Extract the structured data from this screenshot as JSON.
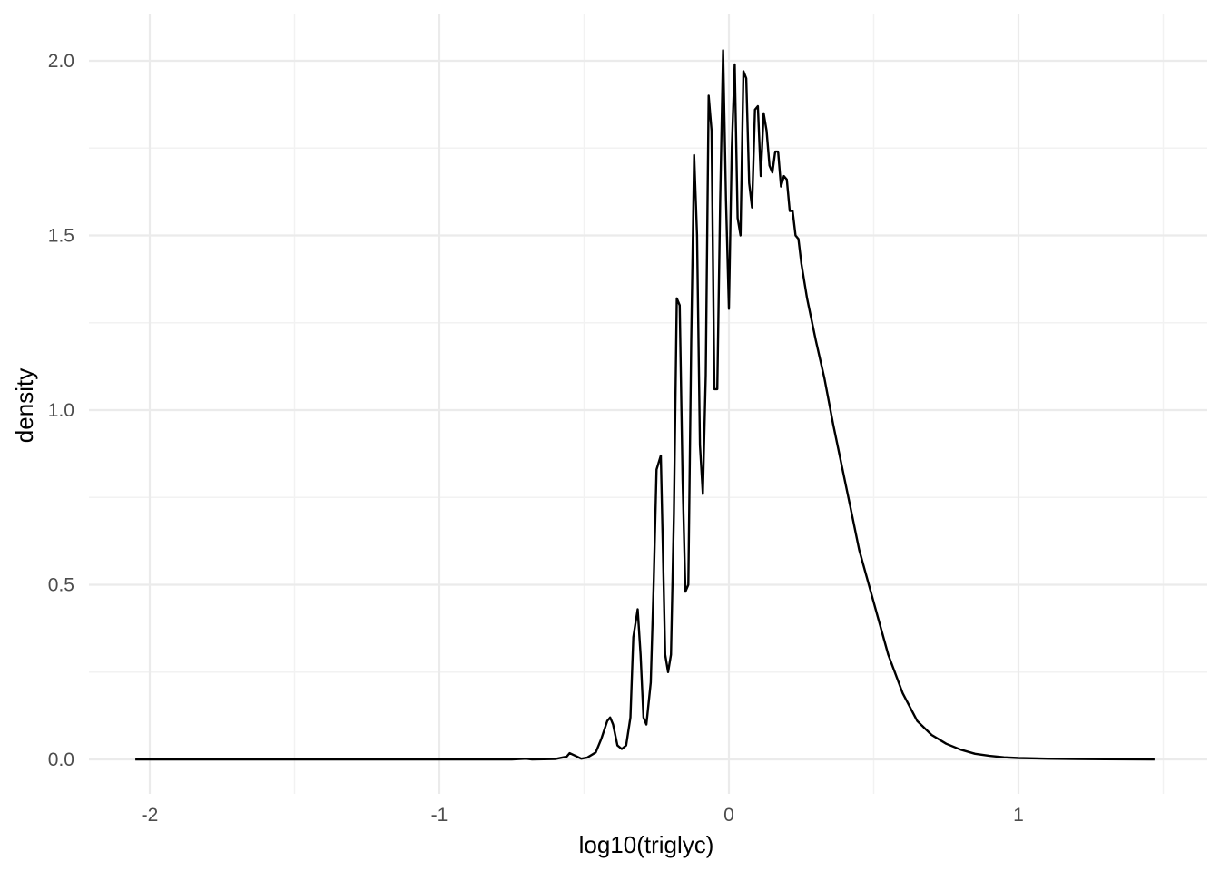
{
  "chart_data": {
    "type": "line",
    "title": "",
    "xlabel": "log10(triglyc)",
    "ylabel": "density",
    "xlim": [
      -2.1,
      1.55
    ],
    "ylim": [
      -0.1,
      2.13
    ],
    "x_major_ticks": [
      -2,
      -1,
      0,
      1
    ],
    "x_tick_labels": [
      "-2",
      "-1",
      "0",
      "1"
    ],
    "x_minor_ticks": [
      -1.5,
      -0.5,
      0.5,
      1.5
    ],
    "y_major_ticks": [
      0,
      0.5,
      1,
      1.5,
      2
    ],
    "y_tick_labels": [
      "0.0",
      "0.5",
      "1.0",
      "1.5",
      "2.0"
    ],
    "y_minor_ticks": [
      0.25,
      0.75,
      1.25,
      1.75
    ],
    "grid": true,
    "legend": "none",
    "line_color": "#000000",
    "series": [
      {
        "x": [
          -2.05,
          -1.5,
          -1.0,
          -0.75,
          -0.7,
          -0.68,
          -0.6,
          -0.56,
          -0.55,
          -0.53,
          -0.51,
          -0.49,
          -0.46,
          -0.44,
          -0.42,
          -0.41,
          -0.4,
          -0.385,
          -0.37,
          -0.355,
          -0.34,
          -0.33,
          -0.315,
          -0.305,
          -0.295,
          -0.285,
          -0.27,
          -0.26,
          -0.25,
          -0.235,
          -0.228,
          -0.22,
          -0.21,
          -0.2,
          -0.19,
          -0.18,
          -0.17,
          -0.16,
          -0.15,
          -0.14,
          -0.13,
          -0.12,
          -0.11,
          -0.1,
          -0.09,
          -0.08,
          -0.07,
          -0.06,
          -0.05,
          -0.04,
          -0.03,
          -0.02,
          -0.01,
          0.0,
          0.01,
          0.02,
          0.03,
          0.04,
          0.05,
          0.06,
          0.07,
          0.08,
          0.09,
          0.1,
          0.11,
          0.12,
          0.13,
          0.14,
          0.15,
          0.16,
          0.17,
          0.18,
          0.19,
          0.2,
          0.21,
          0.22,
          0.23,
          0.24,
          0.25,
          0.27,
          0.3,
          0.33,
          0.36,
          0.39,
          0.42,
          0.45,
          0.5,
          0.55,
          0.6,
          0.65,
          0.7,
          0.75,
          0.8,
          0.85,
          0.9,
          0.95,
          1.0,
          1.1,
          1.2,
          1.3,
          1.47
        ],
        "y": [
          0.0,
          0.0,
          0.0,
          0.0,
          0.002,
          0.0,
          0.001,
          0.008,
          0.018,
          0.01,
          0.002,
          0.005,
          0.02,
          0.06,
          0.11,
          0.12,
          0.1,
          0.04,
          0.03,
          0.04,
          0.12,
          0.35,
          0.43,
          0.3,
          0.12,
          0.1,
          0.22,
          0.5,
          0.83,
          0.87,
          0.6,
          0.3,
          0.25,
          0.3,
          0.7,
          1.32,
          1.3,
          0.8,
          0.48,
          0.5,
          1.2,
          1.73,
          1.5,
          0.9,
          0.76,
          1.1,
          1.9,
          1.8,
          1.06,
          1.06,
          1.6,
          2.03,
          1.6,
          1.29,
          1.75,
          1.99,
          1.55,
          1.5,
          1.97,
          1.95,
          1.65,
          1.58,
          1.86,
          1.87,
          1.67,
          1.85,
          1.8,
          1.7,
          1.68,
          1.74,
          1.74,
          1.64,
          1.67,
          1.66,
          1.57,
          1.57,
          1.5,
          1.49,
          1.42,
          1.32,
          1.2,
          1.09,
          0.96,
          0.84,
          0.72,
          0.6,
          0.45,
          0.3,
          0.19,
          0.11,
          0.07,
          0.045,
          0.028,
          0.016,
          0.01,
          0.006,
          0.004,
          0.002,
          0.001,
          0.0005,
          0.0
        ]
      }
    ]
  }
}
